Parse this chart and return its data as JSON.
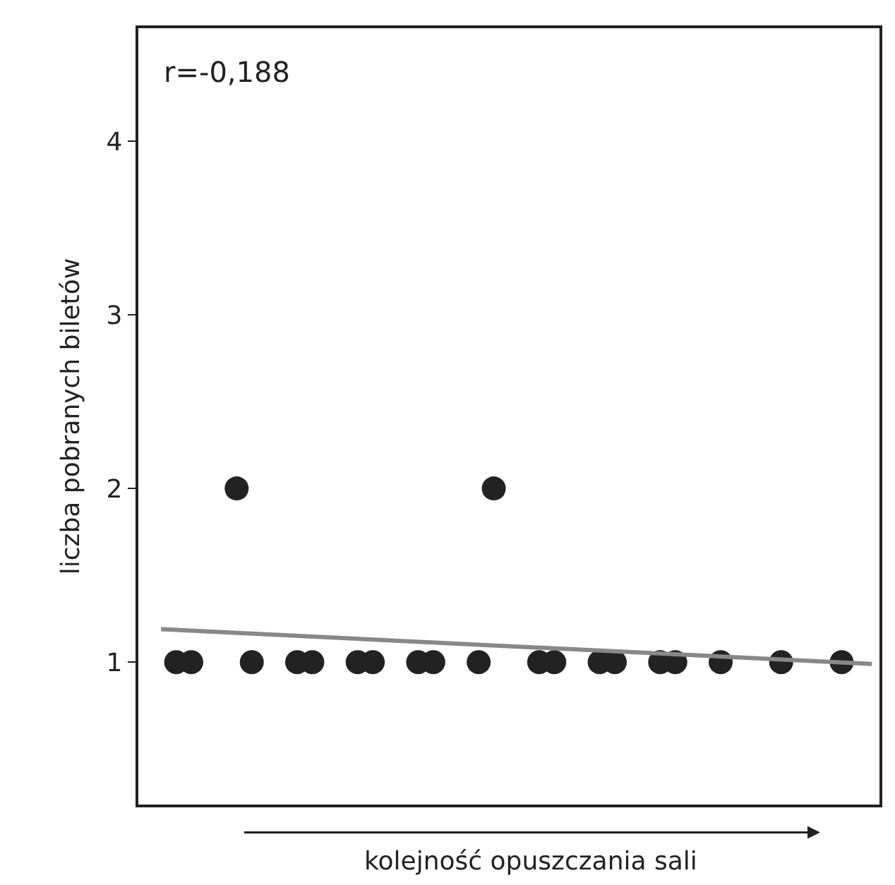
{
  "chart_data": {
    "type": "scatter",
    "xlabel": "kolejność opuszczania sali",
    "ylabel": "liczba pobranych biletów",
    "categories": [
      null,
      null,
      null,
      null,
      null,
      null,
      null,
      null,
      null,
      null,
      null,
      null,
      null,
      null,
      null,
      null,
      null,
      null,
      null,
      null,
      null,
      null,
      null,
      null,
      null,
      null,
      null,
      null,
      null,
      null,
      null,
      null,
      null,
      null,
      null,
      null,
      null,
      null,
      null,
      null,
      null,
      null,
      null,
      null,
      null,
      null,
      null,
      null,
      null
    ],
    "series": [
      {
        "color": "#222222",
        "values": [
          null,
          null,
          1,
          1,
          null,
          null,
          null,
          1,
          null,
          null,
          1,
          1,
          null,
          null,
          1,
          1,
          null,
          null,
          1,
          1,
          null,
          null,
          1,
          null,
          null,
          null,
          1,
          1,
          null,
          null,
          1,
          1,
          null,
          null,
          1,
          1,
          null,
          null,
          1,
          null,
          null,
          null,
          1,
          null,
          null,
          null,
          1,
          null,
          null
        ]
      },
      {
        "color": "#222222",
        "values": [
          null,
          null,
          null,
          null,
          null,
          null,
          2,
          null,
          null,
          null,
          null,
          null,
          null,
          null,
          null,
          null,
          null,
          null,
          null,
          null,
          null,
          null,
          null,
          2,
          null,
          null,
          null,
          null,
          null,
          null,
          null,
          null,
          null,
          null,
          null,
          null,
          null,
          null,
          null,
          null,
          null,
          null,
          null,
          null,
          null,
          null,
          null,
          null,
          null
        ]
      },
      {
        "type": "line",
        "marker": "none",
        "color": "#888888",
        "values": [
          null,
          1.19,
          null,
          null,
          null,
          null,
          null,
          null,
          null,
          null,
          null,
          null,
          null,
          null,
          null,
          null,
          null,
          null,
          null,
          null,
          null,
          null,
          null,
          null,
          null,
          null,
          null,
          null,
          null,
          null,
          null,
          null,
          null,
          null,
          null,
          null,
          null,
          null,
          null,
          null,
          null,
          null,
          null,
          null,
          null,
          null,
          null,
          null,
          0.99
        ]
      }
    ],
    "ylim": [
      0.18,
      4.65
    ],
    "yticks": [
      1,
      2,
      3,
      4
    ],
    "tick_labels": "y",
    "marker": "circle",
    "annotations": [
      "r=-0,188"
    ]
  }
}
